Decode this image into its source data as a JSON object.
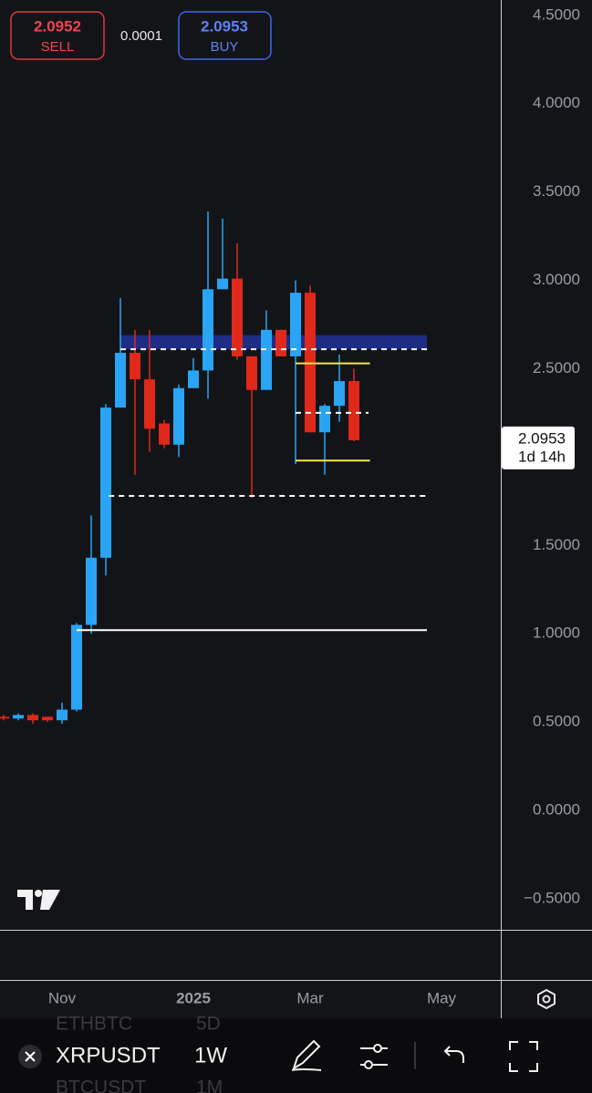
{
  "order_panel": {
    "sell_price": 2.0952,
    "sell_label": "SELL",
    "spread": 0.0001,
    "buy_price": 2.0953,
    "buy_label": "BUY"
  },
  "chart_data": {
    "type": "candlestick",
    "categories": [
      null,
      null,
      null,
      null,
      null,
      null,
      null,
      null,
      null,
      null,
      null,
      null,
      null,
      null,
      null,
      null,
      null,
      null,
      null,
      null,
      null,
      null,
      null,
      null,
      null
    ],
    "open": [
      0.53,
      0.52,
      0.54,
      0.53,
      0.51,
      0.57,
      1.05,
      1.43,
      2.28,
      2.59,
      2.44,
      2.19,
      2.07,
      2.39,
      2.49,
      2.95,
      3.01,
      2.57,
      2.38,
      2.72,
      2.57,
      2.93,
      2.14,
      2.29,
      2.43
    ],
    "high": [
      0.54,
      0.55,
      0.55,
      0.53,
      0.61,
      1.06,
      1.67,
      2.3,
      2.9,
      2.72,
      2.72,
      2.21,
      2.41,
      2.56,
      3.39,
      3.35,
      3.21,
      2.57,
      2.83,
      2.72,
      3.0,
      2.97,
      2.3,
      2.58,
      2.5
    ],
    "low": [
      0.51,
      0.51,
      0.49,
      0.5,
      0.49,
      0.56,
      1.0,
      1.33,
      2.28,
      1.9,
      2.03,
      2.05,
      2.0,
      2.39,
      2.33,
      2.95,
      2.55,
      1.77,
      2.38,
      2.57,
      1.96,
      2.14,
      1.9,
      2.2,
      2.09
    ],
    "close": [
      0.52,
      0.54,
      0.51,
      0.51,
      0.57,
      1.05,
      1.43,
      2.28,
      2.59,
      2.44,
      2.16,
      2.07,
      2.39,
      2.49,
      2.95,
      3.01,
      2.57,
      2.38,
      2.72,
      2.57,
      2.93,
      2.14,
      2.29,
      2.43,
      2.0953
    ],
    "up_color": "#2aa4f4",
    "down_color": "#e0281b",
    "ylim": [
      -0.676,
      4.587
    ],
    "yticks": [
      {
        "value": 4.5,
        "label": "4.5000"
      },
      {
        "value": 4,
        "label": "4.0000"
      },
      {
        "value": 3.5,
        "label": "3.5000"
      },
      {
        "value": 3,
        "label": "3.0000"
      },
      {
        "value": 2.5,
        "label": "2.5000"
      },
      {
        "value": 1.5,
        "label": "1.5000"
      },
      {
        "value": 1,
        "label": "1.0000"
      },
      {
        "value": 0.5,
        "label": "0.5000"
      },
      {
        "value": 0,
        "label": "0.0000"
      },
      {
        "value": -0.5,
        "label": "−0.5000"
      }
    ],
    "xticks": [
      {
        "value": 4,
        "label": "Nov"
      },
      {
        "value": 13,
        "label": "2025"
      },
      {
        "value": 21,
        "label": "Mar"
      },
      {
        "value": 30,
        "label": "May"
      }
    ],
    "zones": [
      {
        "values": [
          2.61,
          2.69
        ],
        "x": [
          8,
          29
        ],
        "color": "#1f2c86"
      }
    ],
    "levels": [
      {
        "value": 2.61,
        "x": [
          8,
          29
        ],
        "color": "#ffffff",
        "dash": true
      },
      {
        "value": 1.78,
        "x": [
          7.2,
          29
        ],
        "color": "#ffffff",
        "dash": true
      },
      {
        "value": 1.02,
        "x": [
          5,
          29
        ],
        "color": "#ffffff",
        "dash": false
      },
      {
        "value": 2.53,
        "x": [
          20,
          25.1
        ],
        "color": "#f5e74a",
        "dash": false
      },
      {
        "value": 1.98,
        "x": [
          20,
          25.1
        ],
        "color": "#f5e74a",
        "dash": false
      },
      {
        "value": 2.25,
        "x": [
          20,
          25
        ],
        "color": "#ffffff",
        "dash": true
      }
    ],
    "price_label": {
      "value": 2.0953,
      "countdown": "1d 14h"
    }
  },
  "toolbar": {
    "symbol": "XRPUSDT",
    "interval": "1W",
    "watchlist": [
      {
        "symbol": "ETHBTC",
        "interval": "5D"
      },
      {
        "symbol": "BTCUSDT",
        "interval": "1M"
      }
    ]
  }
}
